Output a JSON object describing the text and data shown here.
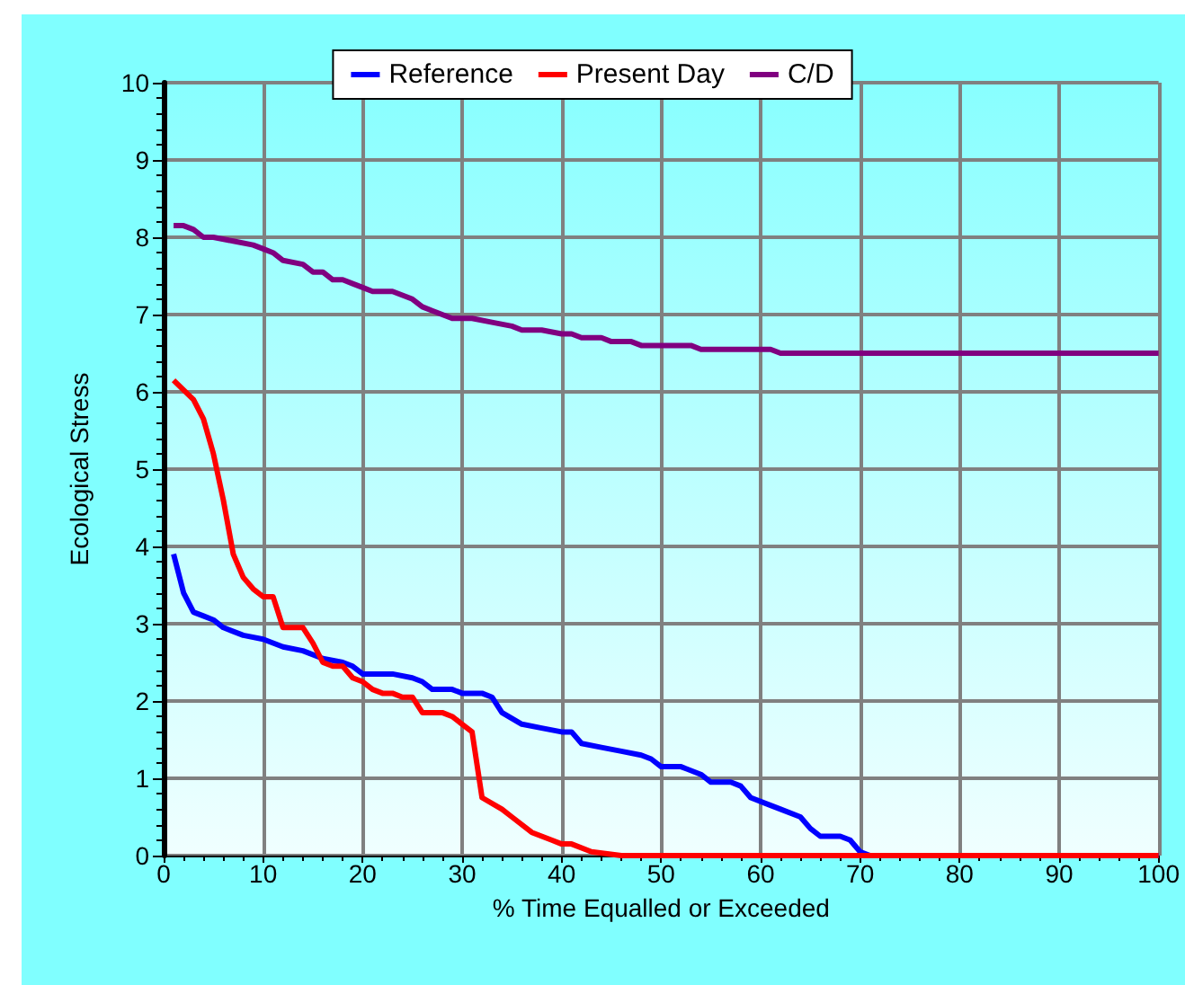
{
  "chart_data": {
    "type": "line",
    "xlabel": "% Time Equalled or Exceeded",
    "ylabel": "Ecological Stress",
    "xlim": [
      0,
      100
    ],
    "xticks": [
      0,
      10,
      20,
      30,
      40,
      50,
      60,
      70,
      80,
      90,
      100
    ],
    "ylim": [
      0,
      10
    ],
    "yticks": [
      0,
      1,
      2,
      3,
      4,
      5,
      6,
      7,
      8,
      9,
      10
    ],
    "grid": true,
    "legend": "top",
    "marker": "none",
    "line_style": "solid",
    "series": [
      {
        "name": "Reference",
        "color": "#0000ff",
        "x": [
          1,
          2,
          3,
          4,
          5,
          6,
          8,
          10,
          12,
          14,
          16,
          18,
          19,
          20,
          23,
          25,
          26,
          27,
          29,
          30,
          32,
          33,
          34,
          36,
          38,
          40,
          41,
          42,
          44,
          46,
          48,
          49,
          50,
          52,
          54,
          55,
          57,
          58,
          59,
          61,
          62,
          64,
          65,
          66,
          68,
          69,
          70,
          71,
          100
        ],
        "values": [
          3.9,
          3.4,
          3.15,
          3.1,
          3.05,
          2.95,
          2.85,
          2.8,
          2.7,
          2.65,
          2.55,
          2.5,
          2.45,
          2.35,
          2.35,
          2.3,
          2.25,
          2.15,
          2.15,
          2.1,
          2.1,
          2.05,
          1.85,
          1.7,
          1.65,
          1.6,
          1.6,
          1.45,
          1.4,
          1.35,
          1.3,
          1.25,
          1.15,
          1.15,
          1.05,
          0.95,
          0.95,
          0.9,
          0.75,
          0.65,
          0.6,
          0.5,
          0.35,
          0.25,
          0.25,
          0.2,
          0.05,
          0,
          0
        ]
      },
      {
        "name": "Present Day",
        "color": "#ff0000",
        "x": [
          1,
          3,
          4,
          5,
          6,
          7,
          8,
          9,
          10,
          11,
          12,
          14,
          15,
          16,
          17,
          18,
          19,
          20,
          21,
          22,
          23,
          24,
          25,
          26,
          28,
          29,
          30,
          31,
          32,
          34,
          35,
          37,
          39,
          40,
          41,
          43,
          46,
          100
        ],
        "values": [
          6.15,
          5.9,
          5.65,
          5.2,
          4.6,
          3.9,
          3.6,
          3.45,
          3.35,
          3.35,
          2.95,
          2.95,
          2.75,
          2.5,
          2.45,
          2.45,
          2.3,
          2.25,
          2.15,
          2.1,
          2.1,
          2.05,
          2.05,
          1.85,
          1.85,
          1.8,
          1.7,
          1.6,
          0.75,
          0.6,
          0.5,
          0.3,
          0.2,
          0.15,
          0.15,
          0.05,
          0,
          0
        ]
      },
      {
        "name": "C/D",
        "color": "#800080",
        "x": [
          1,
          2,
          3,
          4,
          5,
          7,
          9,
          10,
          11,
          12,
          14,
          15,
          16,
          17,
          18,
          19,
          20,
          21,
          23,
          25,
          26,
          27,
          28,
          29,
          31,
          33,
          35,
          36,
          38,
          40,
          41,
          42,
          44,
          45,
          47,
          48,
          53,
          54,
          61,
          62,
          72,
          73,
          100
        ],
        "values": [
          8.15,
          8.15,
          8.1,
          8,
          8,
          7.95,
          7.9,
          7.85,
          7.8,
          7.7,
          7.65,
          7.55,
          7.55,
          7.45,
          7.45,
          7.4,
          7.35,
          7.3,
          7.3,
          7.2,
          7.1,
          7.05,
          7.0,
          6.95,
          6.95,
          6.9,
          6.85,
          6.8,
          6.8,
          6.75,
          6.75,
          6.7,
          6.7,
          6.65,
          6.65,
          6.6,
          6.6,
          6.55,
          6.55,
          6.5,
          6.5,
          6.5,
          6.5
        ]
      }
    ]
  }
}
